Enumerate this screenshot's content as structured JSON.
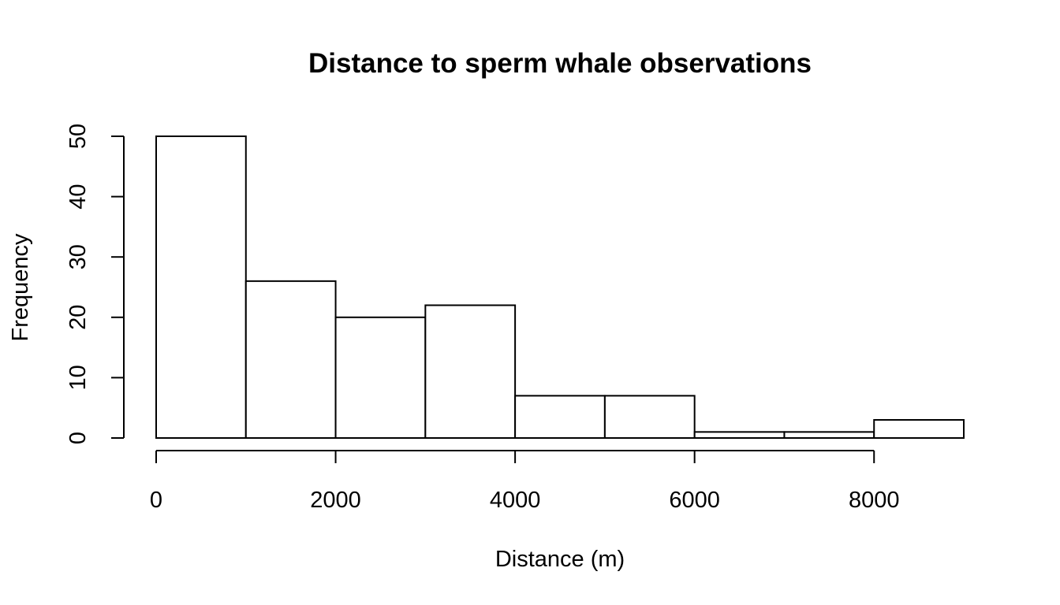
{
  "chart_data": {
    "type": "bar",
    "subtype": "histogram",
    "title": "Distance to sperm whale observations",
    "xlabel": "Distance (m)",
    "ylabel": "Frequency",
    "bins": [
      {
        "from": 0,
        "to": 1000,
        "count": 50
      },
      {
        "from": 1000,
        "to": 2000,
        "count": 26
      },
      {
        "from": 2000,
        "to": 3000,
        "count": 20
      },
      {
        "from": 3000,
        "to": 4000,
        "count": 22
      },
      {
        "from": 4000,
        "to": 5000,
        "count": 7
      },
      {
        "from": 5000,
        "to": 6000,
        "count": 7
      },
      {
        "from": 6000,
        "to": 7000,
        "count": 1
      },
      {
        "from": 7000,
        "to": 8000,
        "count": 1
      },
      {
        "from": 8000,
        "to": 9000,
        "count": 3
      }
    ],
    "xlim": [
      0,
      9000
    ],
    "ylim": [
      0,
      50
    ],
    "x_axis_range": [
      0,
      8000
    ],
    "x_ticks": [
      0,
      2000,
      4000,
      6000,
      8000
    ],
    "x_tick_labels": [
      "0",
      "2000",
      "4000",
      "6000",
      "8000"
    ],
    "y_ticks": [
      0,
      10,
      20,
      30,
      40,
      50
    ],
    "y_tick_labels": [
      "0",
      "10",
      "20",
      "30",
      "40",
      "50"
    ],
    "grid": false,
    "legend": "none",
    "bar_fill": "#ffffff",
    "bar_stroke": "#000000"
  }
}
